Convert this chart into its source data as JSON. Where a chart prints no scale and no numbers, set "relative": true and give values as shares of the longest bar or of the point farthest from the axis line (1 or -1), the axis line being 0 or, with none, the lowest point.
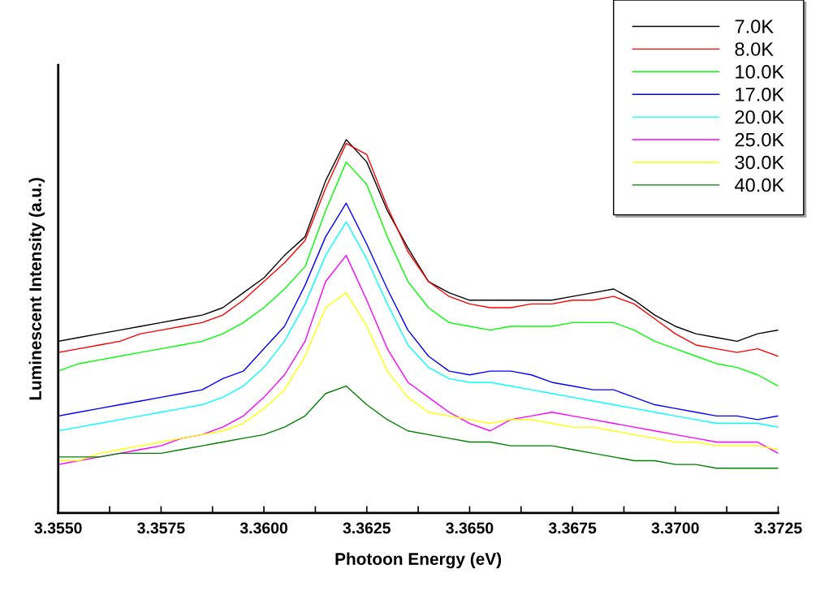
{
  "chart_data": {
    "type": "line",
    "relative": true,
    "xlabel": "Photoon Energy (eV)",
    "ylabel": "Luminescent Intensity (a.u.)",
    "x": [
      3.355,
      3.3555,
      3.356,
      3.3565,
      3.357,
      3.3575,
      3.358,
      3.3585,
      3.359,
      3.3595,
      3.36,
      3.3605,
      3.361,
      3.3615,
      3.362,
      3.3625,
      3.363,
      3.3635,
      3.364,
      3.3645,
      3.365,
      3.3655,
      3.366,
      3.3665,
      3.367,
      3.3675,
      3.368,
      3.3685,
      3.369,
      3.3695,
      3.37,
      3.3705,
      3.371,
      3.3715,
      3.372,
      3.3725
    ],
    "xlim": [
      3.355,
      3.3725
    ],
    "xticks": [
      {
        "value": 3.355,
        "label": "3.3550"
      },
      {
        "value": 3.35625,
        "label": null
      },
      {
        "value": 3.3575,
        "label": "3.3575"
      },
      {
        "value": 3.35875,
        "label": null
      },
      {
        "value": 3.36,
        "label": "3.3600"
      },
      {
        "value": 3.36125,
        "label": null
      },
      {
        "value": 3.3625,
        "label": "3.3625"
      },
      {
        "value": 3.36375,
        "label": null
      },
      {
        "value": 3.365,
        "label": "3.3650"
      },
      {
        "value": 3.36625,
        "label": null
      },
      {
        "value": 3.3675,
        "label": "3.3675"
      },
      {
        "value": 3.36875,
        "label": null
      },
      {
        "value": 3.37,
        "label": "3.3700"
      },
      {
        "value": 3.37125,
        "label": null
      },
      {
        "value": 3.3725,
        "label": "3.3725"
      }
    ],
    "tick_labels": "x",
    "grid": false,
    "legend": "top right",
    "marker": "none",
    "line_style": "solid",
    "series": [
      {
        "name": "7.0K",
        "color": "#000000",
        "values": [
          0.46,
          0.47,
          0.48,
          0.49,
          0.5,
          0.51,
          0.52,
          0.53,
          0.55,
          0.59,
          0.63,
          0.69,
          0.74,
          0.89,
          1.0,
          0.94,
          0.81,
          0.71,
          0.62,
          0.59,
          0.57,
          0.57,
          0.57,
          0.57,
          0.57,
          0.58,
          0.59,
          0.6,
          0.57,
          0.53,
          0.5,
          0.48,
          0.47,
          0.46,
          0.48,
          0.49
        ]
      },
      {
        "name": "8.0K",
        "color": "#ff0000",
        "values": [
          0.43,
          0.44,
          0.45,
          0.46,
          0.48,
          0.49,
          0.5,
          0.51,
          0.53,
          0.57,
          0.62,
          0.67,
          0.73,
          0.87,
          0.99,
          0.96,
          0.82,
          0.7,
          0.62,
          0.58,
          0.56,
          0.55,
          0.55,
          0.56,
          0.56,
          0.57,
          0.57,
          0.58,
          0.56,
          0.52,
          0.48,
          0.45,
          0.44,
          0.43,
          0.44,
          0.42
        ]
      },
      {
        "name": "10.0K",
        "color": "#00ff00",
        "values": [
          0.38,
          0.4,
          0.41,
          0.42,
          0.43,
          0.44,
          0.45,
          0.46,
          0.48,
          0.51,
          0.55,
          0.6,
          0.66,
          0.81,
          0.94,
          0.88,
          0.74,
          0.62,
          0.55,
          0.51,
          0.5,
          0.49,
          0.5,
          0.5,
          0.5,
          0.51,
          0.51,
          0.51,
          0.49,
          0.46,
          0.44,
          0.42,
          0.4,
          0.39,
          0.37,
          0.34
        ]
      },
      {
        "name": "17.0K",
        "color": "#0000ff",
        "values": [
          0.26,
          0.27,
          0.28,
          0.29,
          0.3,
          0.31,
          0.32,
          0.33,
          0.36,
          0.38,
          0.44,
          0.5,
          0.61,
          0.74,
          0.83,
          0.72,
          0.6,
          0.49,
          0.42,
          0.38,
          0.37,
          0.38,
          0.38,
          0.37,
          0.35,
          0.34,
          0.33,
          0.33,
          0.31,
          0.29,
          0.28,
          0.27,
          0.26,
          0.26,
          0.25,
          0.26
        ]
      },
      {
        "name": "20.0K",
        "color": "#00ffff",
        "values": [
          0.22,
          0.23,
          0.24,
          0.25,
          0.26,
          0.27,
          0.28,
          0.29,
          0.31,
          0.34,
          0.39,
          0.46,
          0.56,
          0.69,
          0.78,
          0.68,
          0.56,
          0.45,
          0.39,
          0.36,
          0.35,
          0.35,
          0.34,
          0.33,
          0.32,
          0.31,
          0.3,
          0.29,
          0.28,
          0.27,
          0.26,
          0.25,
          0.24,
          0.24,
          0.24,
          0.23
        ]
      },
      {
        "name": "25.0K",
        "color": "#ff00ff",
        "values": [
          0.13,
          0.14,
          0.15,
          0.16,
          0.17,
          0.18,
          0.2,
          0.21,
          0.23,
          0.26,
          0.31,
          0.37,
          0.46,
          0.62,
          0.69,
          0.57,
          0.44,
          0.35,
          0.31,
          0.27,
          0.24,
          0.22,
          0.25,
          0.26,
          0.27,
          0.26,
          0.25,
          0.24,
          0.23,
          0.22,
          0.21,
          0.2,
          0.19,
          0.19,
          0.19,
          0.16
        ]
      },
      {
        "name": "30.0K",
        "color": "#ffff00",
        "values": [
          0.14,
          0.14,
          0.16,
          0.17,
          0.18,
          0.19,
          0.2,
          0.21,
          0.22,
          0.24,
          0.28,
          0.33,
          0.42,
          0.55,
          0.59,
          0.5,
          0.38,
          0.31,
          0.27,
          0.26,
          0.25,
          0.24,
          0.25,
          0.25,
          0.24,
          0.23,
          0.23,
          0.22,
          0.21,
          0.2,
          0.19,
          0.19,
          0.18,
          0.18,
          0.18,
          0.17
        ]
      },
      {
        "name": "40.0K",
        "color": "#008000",
        "values": [
          0.15,
          0.15,
          0.15,
          0.16,
          0.16,
          0.16,
          0.17,
          0.18,
          0.19,
          0.2,
          0.21,
          0.23,
          0.26,
          0.32,
          0.34,
          0.29,
          0.25,
          0.22,
          0.21,
          0.2,
          0.19,
          0.19,
          0.18,
          0.18,
          0.18,
          0.17,
          0.16,
          0.15,
          0.14,
          0.14,
          0.13,
          0.13,
          0.12,
          0.12,
          0.12,
          0.12
        ]
      }
    ]
  }
}
